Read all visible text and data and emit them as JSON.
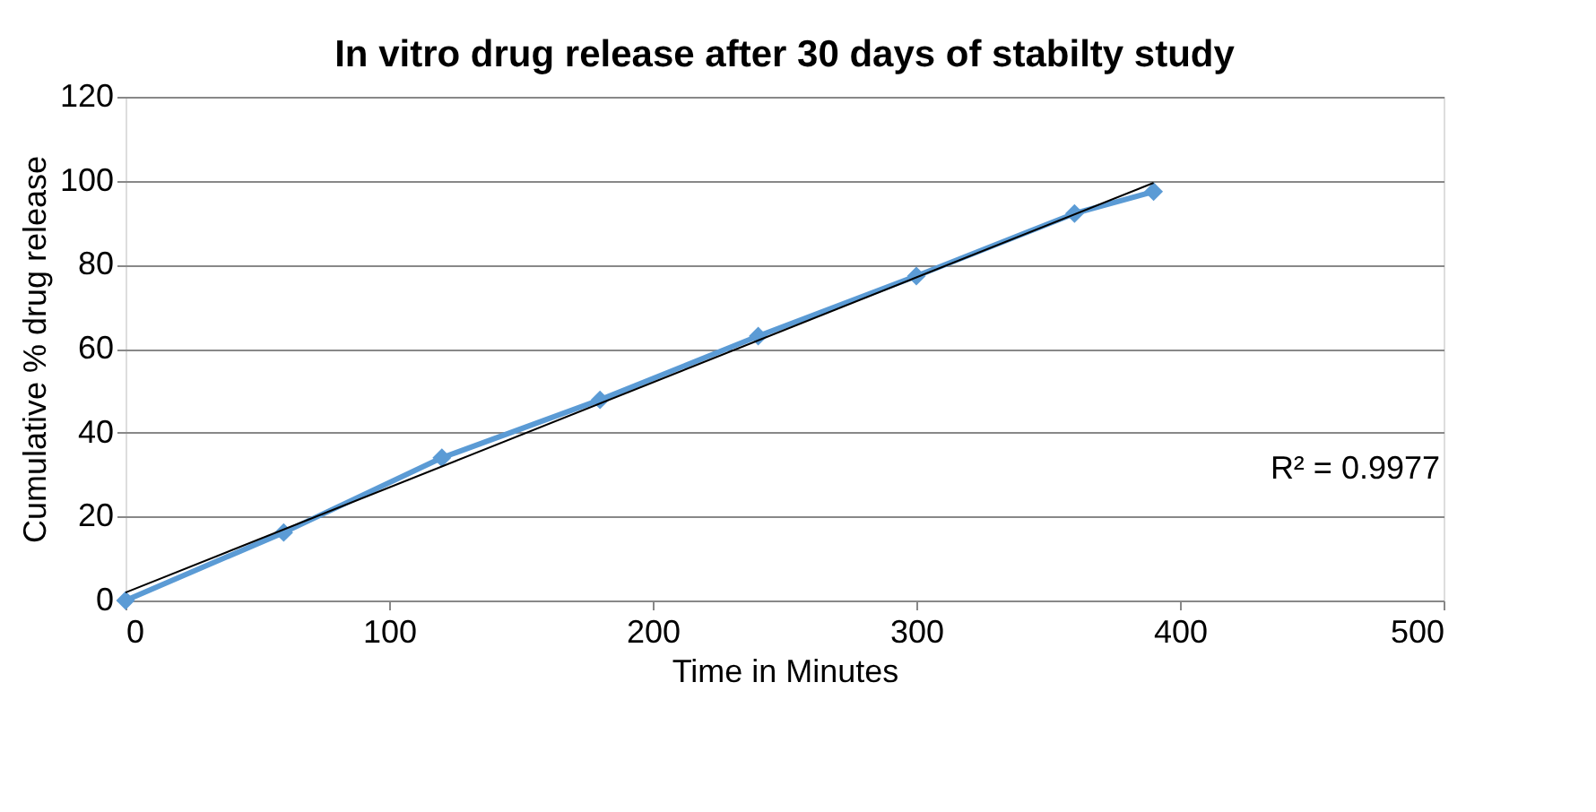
{
  "chart_data": {
    "type": "line",
    "title": "In vitro drug release after 30 days of stabilty study",
    "xlabel": "Time in Minutes",
    "ylabel": "Cumulative % drug release",
    "x": [
      0,
      60,
      120,
      180,
      240,
      300,
      360,
      390
    ],
    "series": [
      {
        "color": "#5b9bd5",
        "values": [
          0,
          16.2,
          34,
          47.8,
          63,
          77.3,
          92.2,
          97.4
        ],
        "marker": "diamond"
      },
      {
        "type": "line",
        "color": "#000000",
        "x": [
          0,
          390
        ],
        "values": [
          1.9,
          99.5
        ],
        "marker": "none"
      }
    ],
    "xlim": [
      0,
      500
    ],
    "xticks": [
      0,
      100,
      200,
      300,
      400,
      500
    ],
    "ylim": [
      0,
      120
    ],
    "yticks": [
      0,
      20,
      40,
      60,
      80,
      100,
      120
    ],
    "grid": "y",
    "annotations": [
      "R² = 0.9977"
    ]
  }
}
